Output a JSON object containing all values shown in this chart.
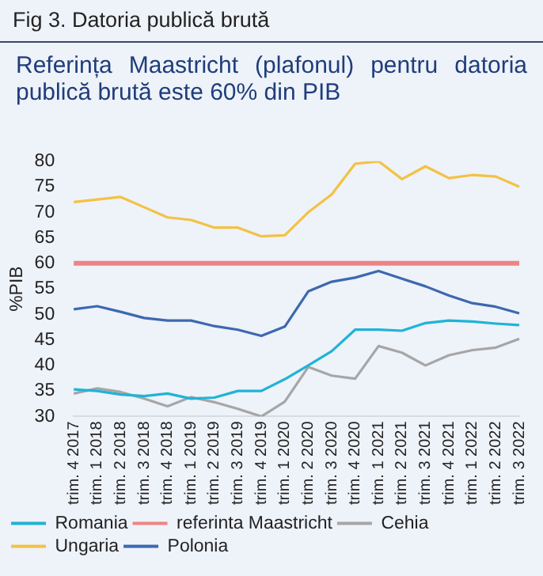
{
  "chart_data": {
    "type": "line",
    "title": "Fig 3. Datoria publică brută",
    "subtitle": "Referința Maastricht (plafonul) pentru datoria publică brută este 60% din PIB",
    "ylabel": "%PIB",
    "categories": [
      "trim. 4 2017",
      "trim. 1 2018",
      "trim. 2 2018",
      "trim. 3 2018",
      "trim. 4 2018",
      "trim. 1 2019",
      "trim. 2 2019",
      "trim. 3 2019",
      "trim. 4 2019",
      "trim. 1 2020",
      "trim. 2 2020",
      "trim. 3 2020",
      "trim. 4 2020",
      "trim. 1 2021",
      "trim. 2 2021",
      "trim. 3 2021",
      "trim. 4 2021",
      "trim. 1 2022",
      "trim. 2 2022",
      "trim. 3 2022"
    ],
    "series": [
      {
        "name": "Romania",
        "color": "#1fb3d6",
        "values": [
          35.3,
          35,
          34.3,
          34,
          34.5,
          33.5,
          33.7,
          35,
          35,
          37.3,
          40,
          42.8,
          47,
          47,
          46.8,
          48.3,
          48.8,
          48.6,
          48.2,
          47.9
        ]
      },
      {
        "name": "referinta Maastricht",
        "color": "#ef8383",
        "values": [
          60,
          60,
          60,
          60,
          60,
          60,
          60,
          60,
          60,
          60,
          60,
          60,
          60,
          60,
          60,
          60,
          60,
          60,
          60,
          60
        ]
      },
      {
        "name": "Cehia",
        "color": "#a6a6a6",
        "values": [
          34.5,
          35.5,
          34.8,
          33.5,
          32,
          33.8,
          32.8,
          31.5,
          30,
          32.9,
          39.7,
          38,
          37.4,
          43.8,
          42.5,
          40,
          42,
          43,
          43.5,
          45.2
        ]
      },
      {
        "name": "Ungaria",
        "color": "#f3c244",
        "values": [
          72,
          72.5,
          73,
          71,
          69,
          68.5,
          67,
          67,
          65.3,
          65.5,
          70,
          73.5,
          79.5,
          80,
          76.5,
          79,
          76.7,
          77.3,
          77,
          75
        ]
      },
      {
        "name": "Polonia",
        "color": "#3d68b0",
        "values": [
          51,
          51.6,
          50.5,
          49.3,
          48.8,
          48.8,
          47.7,
          47,
          45.8,
          47.6,
          54.5,
          56.4,
          57.2,
          58.5,
          57,
          55.5,
          53.7,
          52.2,
          51.5,
          50.2
        ]
      }
    ],
    "ylim": [
      30,
      80
    ],
    "yticks": [
      30,
      35,
      40,
      45,
      50,
      55,
      60,
      65,
      70,
      75,
      80
    ],
    "grid": false,
    "legend": "bottom",
    "marker": "none",
    "line_style": "solid"
  }
}
